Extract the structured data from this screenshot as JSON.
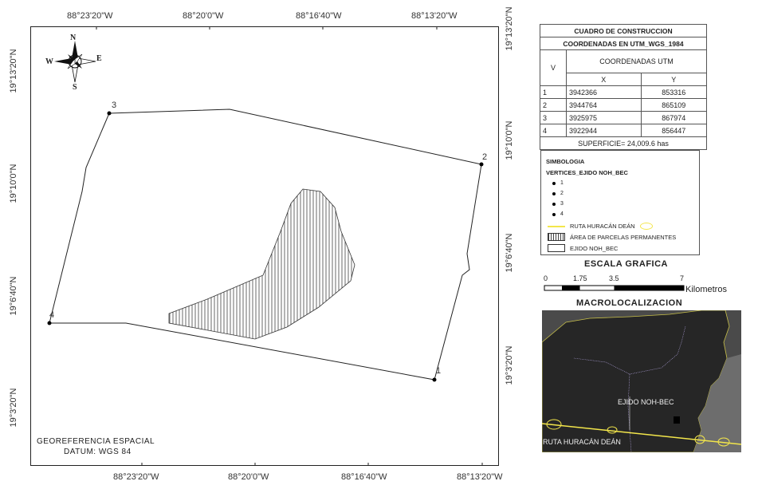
{
  "map": {
    "top_ticks": [
      "88°23'20\"W",
      "88°20'0\"W",
      "88°16'40\"W",
      "88°13'20\"W"
    ],
    "bottom_ticks": [
      "88°23'20\"W",
      "88°20'0\"W",
      "88°16'40\"W",
      "88°13'20\"W"
    ],
    "left_ticks": [
      "19°13'20\"N",
      "19°10'0\"N",
      "19°6'40\"N",
      "19°3'20\"N"
    ],
    "right_ticks": [
      "19°13'20\"N",
      "19°10'0\"N",
      "19°6'40\"N",
      "19°3'20\"N"
    ],
    "compass": {
      "n": "N",
      "s": "S",
      "e": "E",
      "w": "W"
    },
    "vertex_labels": [
      "1",
      "2",
      "3",
      "4"
    ],
    "georef_line1": "GEOREFERENCIA ESPACIAL",
    "georef_line2": "DATUM: WGS 84"
  },
  "table": {
    "title": "CUADRO DE CONSTRUCCION",
    "subtitle": "COORDENADAS EN UTM_WGS_1984",
    "col_v": "V",
    "col_group": "COORDENADAS UTM",
    "col_x": "X",
    "col_y": "Y",
    "rows": [
      {
        "v": "1",
        "x": "3942366",
        "y": "853316"
      },
      {
        "v": "2",
        "x": "3944764",
        "y": "865109"
      },
      {
        "v": "3",
        "x": "3925975",
        "y": "867974"
      },
      {
        "v": "4",
        "x": "3922944",
        "y": "856447"
      }
    ],
    "superficie": "SUPERFICIE= 24,009.6 has"
  },
  "legend": {
    "title": "SIMBOLOGIA",
    "group": "VERTICES_EJIDO NOH_BEC",
    "vertices": [
      "1",
      "2",
      "3",
      "4"
    ],
    "ruta": "RUTA HURACÁN DEÁN",
    "area": "ÁREA DE PARCELAS PERMANENTES",
    "ejido": "EJIDO NOH_BEC"
  },
  "scale": {
    "title": "ESCALA GRAFICA",
    "ticks": [
      "0",
      "1.75",
      "3.5",
      "7"
    ],
    "unit": "Kilometros"
  },
  "macro": {
    "title": "MACROLOCALIZACION",
    "ejido_label": "EJIDO NOH-BEC",
    "ruta_label": "RUTA HURACÁN DEÁN"
  }
}
